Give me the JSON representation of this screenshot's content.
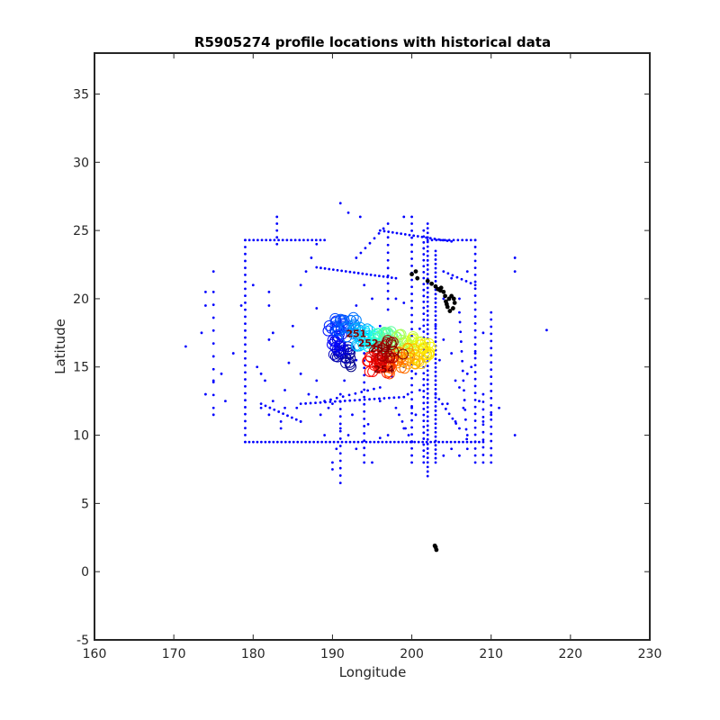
{
  "chart_data": {
    "type": "scatter",
    "title": "R5905274 profile locations with historical data",
    "xlabel": "Longitude",
    "ylabel": "Latitude",
    "xlim": [
      160,
      230
    ],
    "ylim": [
      -5,
      38
    ],
    "xticks": [
      160,
      170,
      180,
      190,
      200,
      210,
      220,
      230
    ],
    "yticks": [
      -5,
      0,
      5,
      10,
      15,
      20,
      25,
      30,
      35
    ],
    "grid": false,
    "series": [
      {
        "kind": "historical",
        "color": "#0000ff",
        "lines": [
          {
            "from": [
              179,
              24.3
            ],
            "to": [
              189,
              24.3
            ],
            "n": 20
          },
          {
            "from": [
              179,
              24.3
            ],
            "to": [
              179,
              9.5
            ],
            "n": 30
          },
          {
            "from": [
              179,
              9.5
            ],
            "to": [
              209,
              9.5
            ],
            "n": 60
          },
          {
            "from": [
              183,
              26
            ],
            "to": [
              183,
              24
            ],
            "n": 5
          },
          {
            "from": [
              193,
              23
            ],
            "to": [
              197,
              25.5
            ],
            "n": 8
          },
          {
            "from": [
              186,
              21
            ],
            "to": [
              188,
              24
            ],
            "n": 4
          },
          {
            "from": [
              188,
              22.3
            ],
            "to": [
              198,
              21.5
            ],
            "n": 20
          },
          {
            "from": [
              196,
              25
            ],
            "to": [
              205,
              24.2
            ],
            "n": 18
          },
          {
            "from": [
              197,
              24.5
            ],
            "to": [
              197,
              20
            ],
            "n": 9
          },
          {
            "from": [
              202,
              25.5
            ],
            "to": [
              202,
              7
            ],
            "n": 56
          },
          {
            "from": [
              201.5,
              25
            ],
            "to": [
              201.5,
              8
            ],
            "n": 40
          },
          {
            "from": [
              200,
              25.5
            ],
            "to": [
              200,
              8
            ],
            "n": 35
          },
          {
            "from": [
              203,
              23.5
            ],
            "to": [
              203,
              8
            ],
            "n": 50
          },
          {
            "from": [
              208,
              24.3
            ],
            "to": [
              208,
              8
            ],
            "n": 33
          },
          {
            "from": [
              210,
              19
            ],
            "to": [
              210,
              8
            ],
            "n": 22
          },
          {
            "from": [
              206,
              19
            ],
            "to": [
              207,
              9
            ],
            "n": 15
          },
          {
            "from": [
              209,
              13
            ],
            "to": [
              209,
              8
            ],
            "n": 10
          },
          {
            "from": [
              202,
              24.3
            ],
            "to": [
              208,
              24.3
            ],
            "n": 12
          },
          {
            "from": [
              186,
              12.3
            ],
            "to": [
              199,
              12.8
            ],
            "n": 22
          },
          {
            "from": [
              194,
              16
            ],
            "to": [
              194,
              8
            ],
            "n": 16
          },
          {
            "from": [
              191,
              13
            ],
            "to": [
              191,
              6.5
            ],
            "n": 13
          },
          {
            "from": [
              204,
              22
            ],
            "to": [
              208,
              21
            ],
            "n": 8
          },
          {
            "from": [
              198,
              12
            ],
            "to": [
              200,
              9.5
            ],
            "n": 6
          },
          {
            "from": [
              175,
              20.5
            ],
            "to": [
              175,
              12
            ],
            "n": 10
          },
          {
            "from": [
              189,
              12.5
            ],
            "to": [
              196,
              13.5
            ],
            "n": 10
          },
          {
            "from": [
              203,
              13
            ],
            "to": [
              206,
              10.5
            ],
            "n": 8
          },
          {
            "from": [
              181,
              12.3
            ],
            "to": [
              186,
              11
            ],
            "n": 10
          }
        ],
        "points": [
          [
            191,
            27
          ],
          [
            192,
            26.3
          ],
          [
            193.5,
            26
          ],
          [
            199,
            26
          ],
          [
            200,
            26
          ],
          [
            174,
            20.5
          ],
          [
            174,
            19.5
          ],
          [
            175,
            22
          ],
          [
            171.5,
            16.5
          ],
          [
            173.5,
            17.5
          ],
          [
            174,
            13
          ],
          [
            175,
            14
          ],
          [
            175,
            11.5
          ],
          [
            178.5,
            19.5
          ],
          [
            182,
            19.5
          ],
          [
            180.5,
            15
          ],
          [
            181,
            14.5
          ],
          [
            181.5,
            14
          ],
          [
            182.5,
            17.5
          ],
          [
            182,
            17
          ],
          [
            184.5,
            15.3
          ],
          [
            185,
            18
          ],
          [
            188,
            14
          ],
          [
            187,
            13
          ],
          [
            185.5,
            12
          ],
          [
            184,
            12
          ],
          [
            183.5,
            11
          ],
          [
            182,
            11.5
          ],
          [
            181,
            12
          ],
          [
            186,
            11
          ],
          [
            188.5,
            11.5
          ],
          [
            189.5,
            12
          ],
          [
            190,
            8
          ],
          [
            190,
            7.5
          ],
          [
            192,
            10
          ],
          [
            195,
            8
          ],
          [
            191,
            10.5
          ],
          [
            196,
            12.5
          ],
          [
            197.5,
            14.3
          ],
          [
            199,
            15
          ],
          [
            199.5,
            13
          ],
          [
            200.5,
            11.5
          ],
          [
            200,
            12
          ],
          [
            204,
            17
          ],
          [
            205,
            16
          ],
          [
            205.5,
            14
          ],
          [
            207.5,
            15
          ],
          [
            206.5,
            12
          ],
          [
            205.5,
            11
          ],
          [
            207,
            10
          ],
          [
            211,
            12
          ],
          [
            213,
            10
          ],
          [
            213,
            22
          ],
          [
            213,
            23
          ],
          [
            217,
            17.7
          ],
          [
            176.5,
            12.5
          ],
          [
            180,
            21
          ],
          [
            188,
            19.3
          ],
          [
            193,
            19.5
          ],
          [
            194,
            21
          ],
          [
            195,
            20
          ],
          [
            196,
            18
          ],
          [
            197,
            19.2
          ],
          [
            198,
            20
          ],
          [
            199,
            19.7
          ],
          [
            201,
            17.8
          ],
          [
            203,
            18
          ],
          [
            204,
            20
          ],
          [
            205,
            21.5
          ],
          [
            206,
            20
          ],
          [
            207,
            22
          ],
          [
            185,
            16.5
          ],
          [
            182,
            20.5
          ],
          [
            183.5,
            10.5
          ],
          [
            189,
            10
          ],
          [
            192.5,
            11.5
          ],
          [
            193,
            9
          ],
          [
            190.5,
            9
          ],
          [
            199,
            10.5
          ],
          [
            204,
            8.5
          ],
          [
            205,
            9
          ],
          [
            206,
            8.5
          ],
          [
            209,
            11
          ],
          [
            210,
            11.5
          ],
          [
            208.5,
            12.5
          ],
          [
            197,
            10
          ],
          [
            196,
            9.8
          ],
          [
            194.5,
            10.8
          ],
          [
            186,
            14.5
          ],
          [
            184,
            13.3
          ],
          [
            182.5,
            12.5
          ],
          [
            188,
            12.8
          ],
          [
            190,
            12.3
          ],
          [
            191.5,
            14
          ],
          [
            193,
            15.5
          ],
          [
            176,
            14.5
          ],
          [
            177.5,
            16
          ],
          [
            200.5,
            14.5
          ],
          [
            201,
            13.3
          ],
          [
            204.5,
            12.3
          ],
          [
            206,
            13.5
          ],
          [
            207,
            14.5
          ],
          [
            208,
            16
          ],
          [
            209,
            17.5
          ],
          [
            203.5,
            15.5
          ]
        ]
      },
      {
        "kind": "argo_profiles",
        "colormap": "jet",
        "path": [
          [
            192,
            15.3
          ],
          [
            191,
            16
          ],
          [
            190.5,
            17
          ],
          [
            190.5,
            17.8
          ],
          [
            191.5,
            18
          ],
          [
            193,
            17.8
          ],
          [
            194,
            17
          ],
          [
            195,
            17
          ],
          [
            196,
            16.8
          ],
          [
            197,
            17
          ],
          [
            198.5,
            16.8
          ],
          [
            200,
            16.6
          ],
          [
            201.5,
            16.2
          ],
          [
            200.5,
            15.8
          ],
          [
            199,
            15.8
          ],
          [
            197.5,
            15.2
          ],
          [
            196,
            15
          ],
          [
            195,
            15.6
          ],
          [
            196.5,
            16.4
          ],
          [
            198,
            16.2
          ]
        ],
        "count": 260
      },
      {
        "kind": "land",
        "color": "#000000",
        "points": [
          [
            200.5,
            22
          ],
          [
            200,
            21.8
          ],
          [
            200.7,
            21.5
          ],
          [
            202,
            21.3
          ],
          [
            202.5,
            21.1
          ],
          [
            203,
            20.9
          ],
          [
            203.3,
            20.7
          ],
          [
            203.6,
            20.6
          ],
          [
            204,
            20.5
          ],
          [
            203.7,
            20.8
          ],
          [
            204.2,
            20.2
          ],
          [
            204.3,
            19.8
          ],
          [
            204.5,
            19.4
          ],
          [
            204.8,
            19.1
          ],
          [
            205.2,
            19.3
          ],
          [
            205.4,
            19.7
          ],
          [
            205.3,
            20
          ],
          [
            205.0,
            20.2
          ],
          [
            204.7,
            20.0
          ],
          [
            204.4,
            19.6
          ],
          [
            203,
            1.8
          ],
          [
            203.1,
            1.6
          ],
          [
            202.9,
            1.9
          ]
        ]
      }
    ],
    "labels": [
      {
        "text": "251",
        "x": 193,
        "y": 17.2,
        "color": "#800000"
      },
      {
        "text": "252",
        "x": 194.5,
        "y": 16.5,
        "color": "#800000"
      },
      {
        "text": "253",
        "x": 196,
        "y": 16.1,
        "color": "#800000"
      },
      {
        "text": "254",
        "x": 196.5,
        "y": 14.6,
        "color": "#800000"
      }
    ]
  }
}
